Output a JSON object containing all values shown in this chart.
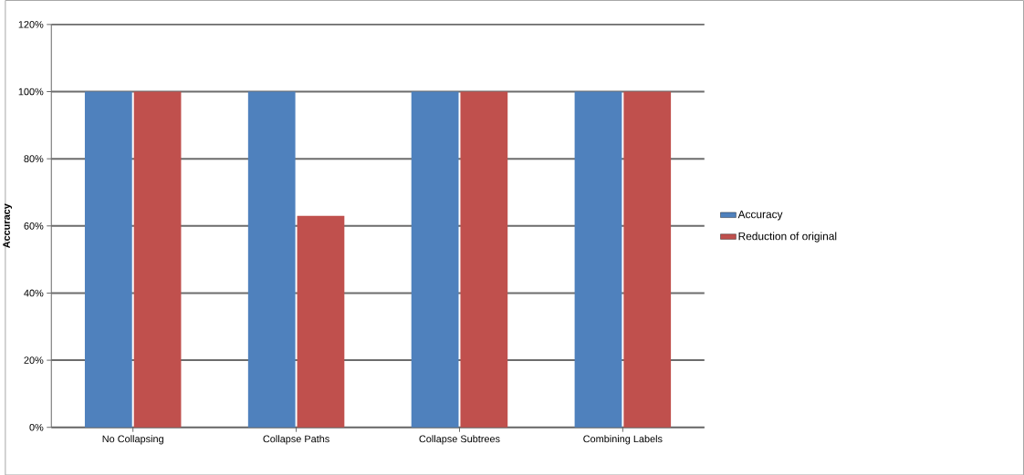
{
  "chart_data": {
    "type": "bar",
    "ylabel": "Accuracy",
    "categories": [
      "No Collapsing",
      "Collapse Paths",
      "Collapse Subtrees",
      "Combining Labels"
    ],
    "series": [
      {
        "name": "Accuracy",
        "color": "#4f81bd",
        "values": [
          100,
          100,
          100,
          100
        ]
      },
      {
        "name": "Reduction of original",
        "color": "#c0504d",
        "values": [
          100,
          63,
          100,
          100
        ]
      }
    ],
    "ylim": [
      0,
      120
    ],
    "yticks": [
      {
        "value": 0,
        "label": "0%"
      },
      {
        "value": 20,
        "label": "20%"
      },
      {
        "value": 40,
        "label": "40%"
      },
      {
        "value": 60,
        "label": "60%"
      },
      {
        "value": 80,
        "label": "80%"
      },
      {
        "value": 100,
        "label": "100%"
      },
      {
        "value": 120,
        "label": "120%"
      }
    ],
    "grid": "y",
    "legend": "right"
  }
}
